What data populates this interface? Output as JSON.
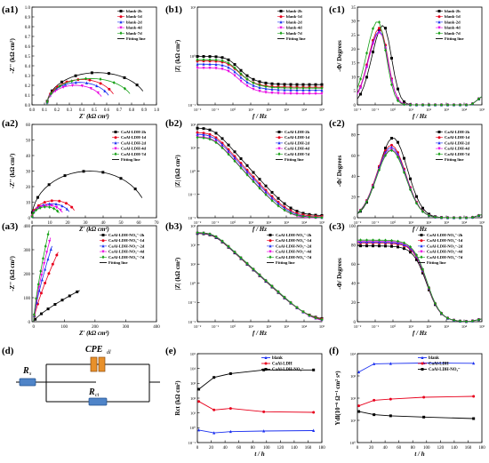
{
  "panel_labels": [
    "(a1)",
    "(b1)",
    "(c1)",
    "(a2)",
    "(b2)",
    "(c2)",
    "(a3)",
    "(b3)",
    "(c3)",
    "(d)",
    "(e)",
    "(f)"
  ],
  "colors": {
    "c0": "#000000",
    "c1": "#e8001c",
    "c2": "#1a2ff0",
    "c3": "#e800e0",
    "c4": "#16a016"
  },
  "axis_text": {
    "nyq_x": "Z' (kΩ cm²)",
    "nyq_y": "-Z'' (kΩ cm²)",
    "bode_x": "f / Hz",
    "bode_y": "|Z| (kΩ cm²)",
    "phase_y": "-Φ/ Degrees",
    "e_x": "t / h",
    "e_y": "Rct (kΩ cm²)",
    "f_x": "t / h",
    "f_y": "Ydl(10⁻⁶ Ω⁻¹ cm² sⁿ)"
  },
  "circuit": {
    "rs": "Rs",
    "cpe": "CPEdl",
    "rct": "Rct"
  },
  "legend_sets": {
    "blank": [
      "blank-2h",
      "blank-1d",
      "blank-2d",
      "blank-4d",
      "blank-7d",
      "Fitting line"
    ],
    "ldh": [
      "CaAl-LDH-2h",
      "CaAl-LDH-1d",
      "CaAl-LDH-2d",
      "CaAl-LDH-4d",
      "CaAl-LDH-7d",
      "Fitting line"
    ],
    "no3": [
      "CaAl-LDH-NO₃⁻-2h",
      "CaAl-LDH-NO₃⁻-1d",
      "CaAl-LDH-NO₃⁻-2d",
      "CaAl-LDH-NO₃⁻-4d",
      "CaAl-LDH-NO₃⁻-7d",
      "Fitting line"
    ],
    "summary": [
      "blank",
      "CaAl-LDH",
      "CaAl-LDH-NO₃⁻"
    ]
  },
  "chart_data": [
    {
      "id": "a1",
      "type": "scatter",
      "ylabel": "-Z'' (kΩ cm²)",
      "xlabel": "Z' (kΩ cm²)",
      "xlim": [
        0,
        1.0
      ],
      "ylim": [
        0,
        1.0
      ],
      "xticks": [
        0.0,
        0.1,
        0.2,
        0.3,
        0.4,
        0.5,
        0.6,
        0.7,
        0.8,
        0.9,
        1.0
      ],
      "yticks": [
        0.0,
        0.1,
        0.2,
        0.3,
        0.4,
        0.5,
        0.6,
        0.7,
        0.8,
        0.9,
        1.0
      ],
      "series_params": [
        [
          0.12,
          0.93,
          0.33
        ],
        [
          0.12,
          0.68,
          0.26
        ],
        [
          0.12,
          0.64,
          0.23
        ],
        [
          0.12,
          0.58,
          0.2
        ],
        [
          0.12,
          0.82,
          0.27
        ]
      ]
    },
    {
      "id": "b1",
      "type": "line",
      "xlabel": "f / Hz",
      "ylabel": "|Z| (kΩ cm²)",
      "x_log": true,
      "y_log": true,
      "xlim_exp": [
        -2,
        5
      ],
      "ylim_exp": [
        -1,
        1
      ],
      "ytick_labels": [
        "10⁻¹",
        "10⁰",
        "10¹"
      ],
      "series_params": [
        [
          0.26,
          0.72
        ],
        [
          0.23,
          0.56
        ],
        [
          0.2,
          0.48
        ],
        [
          0.17,
          0.4
        ],
        [
          0.22,
          0.62
        ]
      ]
    },
    {
      "id": "c1",
      "type": "line",
      "xlabel": "f / Hz",
      "ylabel": "-Φ/ Degrees",
      "x_log": true,
      "xlim_exp": [
        -2,
        5
      ],
      "ylim": [
        0,
        35
      ],
      "yticks": [
        0,
        5,
        10,
        15,
        20,
        25,
        30,
        35
      ],
      "series_params": [
        [
          28.5,
          -0.55
        ],
        [
          27.5,
          -0.75
        ],
        [
          26.5,
          -0.75
        ],
        [
          26,
          -0.75
        ],
        [
          30,
          -0.85
        ]
      ]
    },
    {
      "id": "a2",
      "type": "scatter",
      "xlabel": "Z' (kΩ cm²)",
      "ylabel": "-Z'' (kΩ cm²)",
      "xlim": [
        0,
        70
      ],
      "ylim": [
        0,
        60
      ],
      "xticks": [
        0,
        10,
        20,
        30,
        40,
        50,
        60,
        70
      ],
      "yticks": [
        0,
        10,
        20,
        30,
        40,
        50,
        60
      ],
      "series_params": [
        [
          0,
          65,
          30
        ],
        [
          0,
          25,
          11
        ],
        [
          0,
          22,
          9
        ],
        [
          0,
          18,
          8
        ],
        [
          0,
          16,
          7
        ]
      ]
    },
    {
      "id": "b2",
      "type": "line",
      "xlabel": "f / Hz",
      "ylabel": "|Z| (kΩ cm²)",
      "x_log": true,
      "y_log": true,
      "xlim_exp": [
        -2,
        5
      ],
      "ylim_exp": [
        -2,
        2
      ],
      "ytick_labels": [
        "10⁻²",
        "10⁻¹",
        "10⁰",
        "10¹",
        "10²"
      ],
      "series_params": [
        [
          70,
          0.012
        ],
        [
          45,
          0.011
        ],
        [
          38,
          0.01
        ],
        [
          30,
          0.009
        ],
        [
          28,
          0.01
        ]
      ]
    },
    {
      "id": "c2",
      "type": "line",
      "xlabel": "f / Hz",
      "ylabel": "-Φ/ Degrees",
      "x_log": true,
      "xlim_exp": [
        -2,
        5
      ],
      "ylim": [
        0,
        90
      ],
      "yticks": [
        0,
        20,
        40,
        60,
        80
      ],
      "series_params": [
        [
          77,
          0.0
        ],
        [
          70,
          -0.1
        ],
        [
          68,
          -0.1
        ],
        [
          66,
          -0.1
        ],
        [
          65,
          -0.1
        ]
      ]
    },
    {
      "id": "a3",
      "type": "scatter",
      "xlabel": "Z' (kΩ cm²)",
      "ylabel": "-Z'' (kΩ cm²)",
      "xlim": [
        -5,
        400
      ],
      "ylim": [
        0,
        400
      ],
      "xticks": [
        0,
        100,
        200,
        300,
        400
      ],
      "yticks": [
        0,
        100,
        200,
        300,
        400
      ],
      "series_params": [
        [
          150,
          130
        ],
        [
          80,
          290
        ],
        [
          60,
          315
        ],
        [
          55,
          350
        ],
        [
          50,
          380
        ]
      ]
    },
    {
      "id": "b3",
      "type": "line",
      "xlabel": "f / Hz",
      "ylabel": "|Z| (kΩ cm²)",
      "x_log": true,
      "y_log": true,
      "xlim_exp": [
        -2,
        5
      ],
      "ylim_exp": [
        -2,
        3
      ],
      "ytick_labels": [
        "10⁻²",
        "10⁻¹",
        "10⁰",
        "10¹",
        "10²",
        "10³"
      ],
      "series_params": [
        [
          400,
          0.012
        ],
        [
          420,
          0.011
        ],
        [
          430,
          0.01
        ],
        [
          440,
          0.009
        ],
        [
          450,
          0.01
        ]
      ]
    },
    {
      "id": "c3",
      "type": "line",
      "xlabel": "f / Hz",
      "ylabel": "-Φ/ Degrees",
      "x_log": true,
      "xlim_exp": [
        -2,
        5
      ],
      "ylim": [
        0,
        100
      ],
      "yticks": [
        0,
        20,
        40,
        60,
        80,
        100
      ],
      "series_params": [
        [
          79
        ],
        [
          82
        ],
        [
          83
        ],
        [
          84
        ],
        [
          85
        ]
      ]
    },
    {
      "id": "e",
      "type": "line",
      "xlabel": "t / h",
      "ylabel": "Rct (kΩ cm²)",
      "y_log": true,
      "xlim": [
        0,
        180
      ],
      "ylim_exp": [
        -1,
        5
      ],
      "xticks": [
        0,
        20,
        40,
        60,
        80,
        100,
        120,
        140,
        160,
        180
      ],
      "ytick_labels": [
        "10⁻¹",
        "10⁰",
        "10¹",
        "10²",
        "10³",
        "10⁴",
        "10⁵"
      ],
      "x": [
        2,
        24,
        48,
        96,
        168
      ],
      "series": [
        {
          "name": "blank",
          "values": [
            0.7,
            0.45,
            0.55,
            0.6,
            0.65
          ]
        },
        {
          "name": "CaAl-LDH",
          "values": [
            60,
            16,
            20,
            12,
            11
          ]
        },
        {
          "name": "CaAl-LDH-NO₃⁻",
          "values": [
            400,
            2500,
            4500,
            8000,
            8000
          ]
        }
      ]
    },
    {
      "id": "f",
      "type": "line",
      "xlabel": "t / h",
      "ylabel": "Ydl(10⁻⁶ Ω⁻¹ cm² sⁿ)",
      "y_log": true,
      "xlim": [
        0,
        180
      ],
      "ylim_exp": [
        0,
        4
      ],
      "xticks": [
        0,
        20,
        40,
        60,
        80,
        100,
        120,
        140,
        160,
        180
      ],
      "ytick_labels": [
        "10⁰",
        "10¹",
        "10²",
        "10³",
        "10⁴"
      ],
      "x": [
        2,
        24,
        48,
        96,
        168
      ],
      "series": [
        {
          "name": "blank",
          "values": [
            1500,
            3500,
            3600,
            3800,
            3700
          ]
        },
        {
          "name": "CaAl-LDH",
          "values": [
            45,
            80,
            90,
            110,
            120
          ]
        },
        {
          "name": "CaAl-LDH-NO₃⁻",
          "values": [
            25,
            18,
            16,
            14,
            12
          ]
        }
      ]
    }
  ]
}
